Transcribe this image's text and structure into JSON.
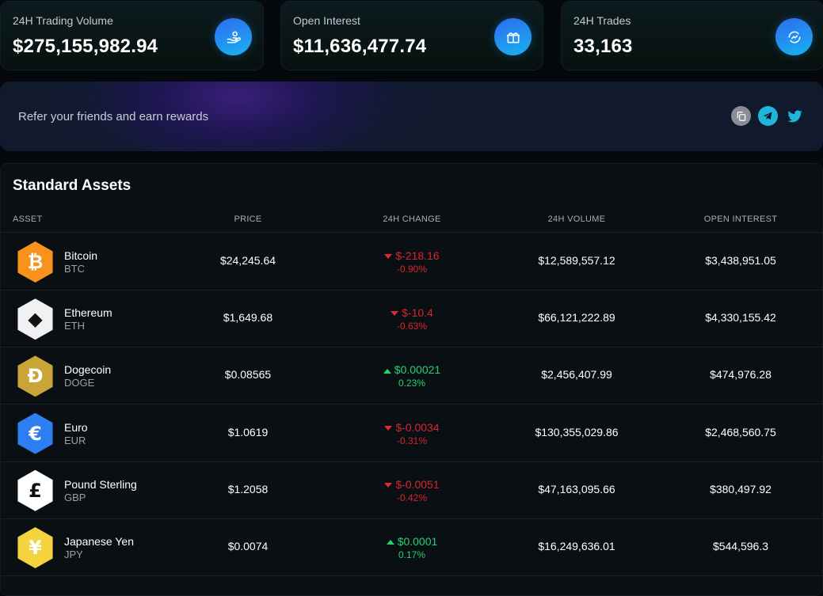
{
  "stats": [
    {
      "label": "24H Trading Volume",
      "value": "$275,155,982.94",
      "icon": "hand-coins-icon"
    },
    {
      "label": "Open Interest",
      "value": "$11,636,477.74",
      "icon": "gift-icon"
    },
    {
      "label": "24H Trades",
      "value": "33,163",
      "icon": "trend-refresh-icon"
    }
  ],
  "referral": {
    "text": "Refer your friends and earn rewards",
    "icons": [
      "copy-icon",
      "telegram-icon",
      "twitter-icon"
    ]
  },
  "assets": {
    "title": "Standard Assets",
    "columns": [
      "ASSET",
      "PRICE",
      "24H CHANGE",
      "24H VOLUME",
      "OPEN INTEREST"
    ],
    "rows": [
      {
        "name": "Bitcoin",
        "symbol": "BTC",
        "price": "$24,245.64",
        "change": "$-218.16",
        "change_pct": "-0.90%",
        "direction": "down",
        "volume": "$12,589,557.12",
        "open_interest": "$3,438,951.05",
        "icon": "bitcoin-icon",
        "color": "#f7931a",
        "glyph": "₿"
      },
      {
        "name": "Ethereum",
        "symbol": "ETH",
        "price": "$1,649.68",
        "change": "$-10.4",
        "change_pct": "-0.63%",
        "direction": "down",
        "volume": "$66,121,222.89",
        "open_interest": "$4,330,155.42",
        "icon": "ethereum-icon",
        "color": "#f1f1f3",
        "glyph": "◆"
      },
      {
        "name": "Dogecoin",
        "symbol": "DOGE",
        "price": "$0.08565",
        "change": "$0.00021",
        "change_pct": "0.23%",
        "direction": "up",
        "volume": "$2,456,407.99",
        "open_interest": "$474,976.28",
        "icon": "dogecoin-icon",
        "color": "#c8a536",
        "glyph": "Ð"
      },
      {
        "name": "Euro",
        "symbol": "EUR",
        "price": "$1.0619",
        "change": "$-0.0034",
        "change_pct": "-0.31%",
        "direction": "down",
        "volume": "$130,355,029.86",
        "open_interest": "$2,468,560.75",
        "icon": "euro-icon",
        "color": "#2d7ef0",
        "glyph": "€"
      },
      {
        "name": "Pound Sterling",
        "symbol": "GBP",
        "price": "$1.2058",
        "change": "$-0.0051",
        "change_pct": "-0.42%",
        "direction": "down",
        "volume": "$47,163,095.66",
        "open_interest": "$380,497.92",
        "icon": "pound-icon",
        "color": "#ffffff",
        "glyph": "£"
      },
      {
        "name": "Japanese Yen",
        "symbol": "JPY",
        "price": "$0.0074",
        "change": "$0.0001",
        "change_pct": "0.17%",
        "direction": "up",
        "volume": "$16,249,636.01",
        "open_interest": "$544,596.3",
        "icon": "yen-icon",
        "color": "#f5d33e",
        "glyph": "¥"
      }
    ]
  },
  "colors": {
    "negative": "#d6262b",
    "positive": "#23d36f",
    "accent": "#1ab2f0"
  }
}
